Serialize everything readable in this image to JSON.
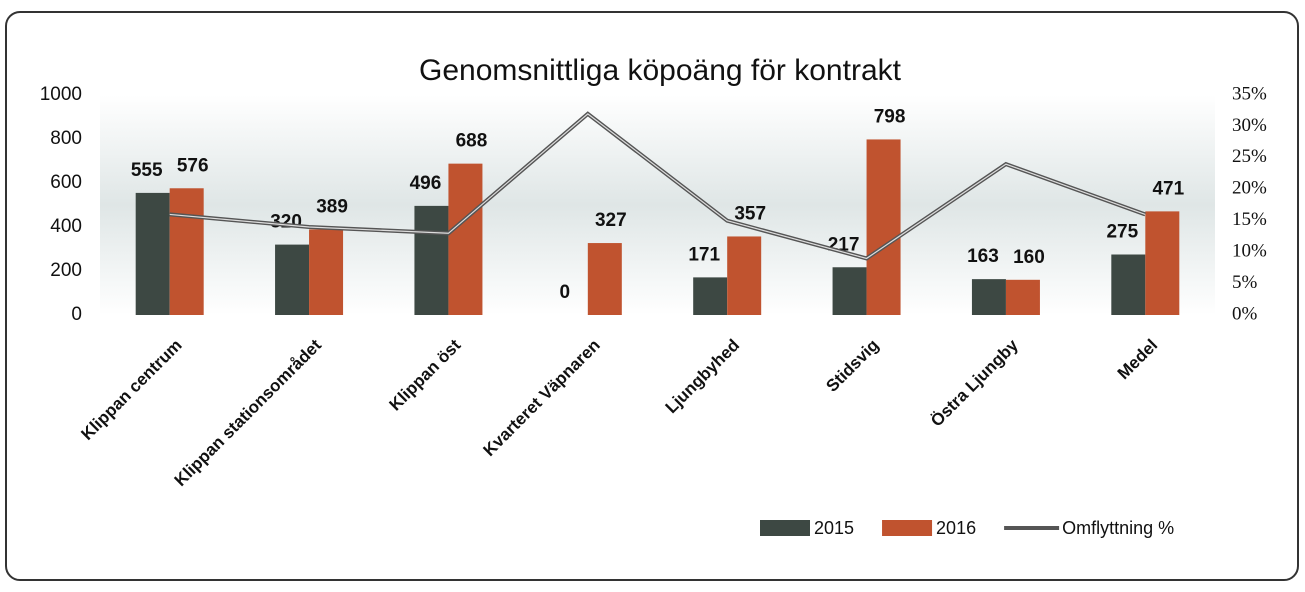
{
  "chart_data": {
    "type": "bar",
    "title": "Genomsnittliga köpoäng för kontrakt",
    "categories": [
      "Klippan centrum",
      "Klippan stationsområdet",
      "Klippan öst",
      "Kvarteret Väpnaren",
      "Ljungbyhed",
      "Stidsvig",
      "Östra Ljungby",
      "Medel"
    ],
    "series": [
      {
        "name": "2015",
        "color": "#3d4843",
        "values": [
          555,
          320,
          496,
          0,
          171,
          217,
          163,
          275
        ]
      },
      {
        "name": "2016",
        "color": "#c0532f",
        "values": [
          576,
          389,
          688,
          327,
          357,
          798,
          160,
          471
        ]
      },
      {
        "name": "Omflyttning %",
        "color": "#555555",
        "type": "line",
        "axis": "y2",
        "values": [
          16,
          14,
          13,
          32,
          15,
          9,
          24,
          16
        ]
      }
    ],
    "ylim": [
      0,
      1000
    ],
    "yticks": [
      0,
      200,
      400,
      600,
      800,
      1000
    ],
    "y2lim": [
      0,
      35
    ],
    "y2ticks": [
      {
        "value": 0,
        "label": "0%"
      },
      {
        "value": 5,
        "label": "5%"
      },
      {
        "value": 10,
        "label": "10%"
      },
      {
        "value": 15,
        "label": "15%"
      },
      {
        "value": 20,
        "label": "20%"
      },
      {
        "value": 25,
        "label": "25%"
      },
      {
        "value": 30,
        "label": "30%"
      },
      {
        "value": 35,
        "label": "35%"
      }
    ],
    "legend": "bottom-right"
  }
}
